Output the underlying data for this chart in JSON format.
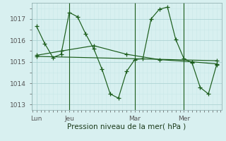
{
  "background_color": "#d8f0f0",
  "grid_color_major": "#aed4d4",
  "grid_color_minor": "#c8e8e8",
  "line_color": "#1a5c1a",
  "x_tick_labels": [
    "Lun",
    "Jeu",
    "Mar",
    "Mer"
  ],
  "x_tick_positions": [
    0,
    2,
    6,
    9
  ],
  "xlabel": "Pression niveau de la mer( hPa )",
  "ylim": [
    1012.75,
    1017.75
  ],
  "yticks": [
    1013,
    1014,
    1015,
    1016,
    1017
  ],
  "series1_x": [
    0.0,
    0.5,
    1.0,
    1.5,
    2.0,
    2.5,
    3.0,
    3.5,
    4.0,
    4.5,
    5.0,
    5.5,
    6.0,
    6.5,
    7.0,
    7.5,
    8.0,
    8.5,
    9.0,
    9.5,
    10.0,
    10.5,
    11.0
  ],
  "series1_y": [
    1016.65,
    1015.85,
    1015.2,
    1015.35,
    1017.3,
    1017.1,
    1016.3,
    1015.6,
    1014.65,
    1013.5,
    1013.3,
    1014.55,
    1015.1,
    1015.15,
    1017.0,
    1017.45,
    1017.55,
    1016.05,
    1015.15,
    1014.95,
    1013.8,
    1013.5,
    1014.85
  ],
  "series2_x": [
    0.0,
    1.5,
    3.5,
    5.5,
    7.5,
    9.5,
    11.0
  ],
  "series2_y": [
    1015.3,
    1015.5,
    1015.75,
    1015.35,
    1015.1,
    1015.0,
    1014.9
  ],
  "series3_x": [
    0.0,
    11.0
  ],
  "series3_y": [
    1015.25,
    1015.05
  ],
  "vline_x": [
    2.0,
    6.0,
    9.0
  ],
  "xlim": [
    -0.3,
    11.3
  ],
  "figsize": [
    3.2,
    2.0
  ],
  "dpi": 100
}
